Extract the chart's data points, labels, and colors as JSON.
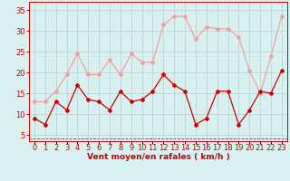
{
  "x": [
    0,
    1,
    2,
    3,
    4,
    5,
    6,
    7,
    8,
    9,
    10,
    11,
    12,
    13,
    14,
    15,
    16,
    17,
    18,
    19,
    20,
    21,
    22,
    23
  ],
  "wind_avg": [
    9,
    7.5,
    13,
    11,
    17,
    13.5,
    13,
    11,
    15.5,
    13,
    13.5,
    15.5,
    19.5,
    17,
    15.5,
    7.5,
    9,
    15.5,
    15.5,
    7.5,
    11,
    15.5,
    15,
    20.5
  ],
  "wind_gust": [
    13,
    13,
    15.5,
    19.5,
    24.5,
    19.5,
    19.5,
    23,
    19.5,
    24.5,
    22.5,
    22.5,
    31.5,
    33.5,
    33.5,
    28,
    31,
    30.5,
    30.5,
    28.5,
    20.5,
    15,
    24,
    33.5
  ],
  "avg_color": "#cc0000",
  "gust_color": "#f0a0a0",
  "bg_color": "#d8f0f0",
  "grid_color": "#b8d0d0",
  "axis_color": "#cc0000",
  "xlabel": "Vent moyen/en rafales ( km/h )",
  "ylabel_ticks": [
    5,
    10,
    15,
    20,
    25,
    30,
    35
  ],
  "ylim": [
    3.5,
    37
  ],
  "xlim": [
    -0.5,
    23.5
  ],
  "label_fontsize": 6.5,
  "tick_fontsize": 6.0
}
